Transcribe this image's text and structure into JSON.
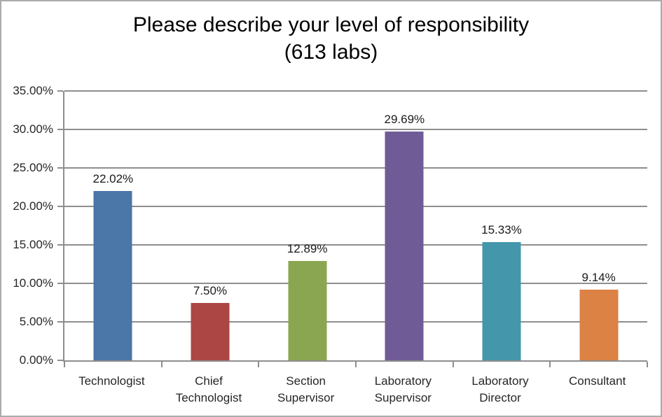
{
  "figure": {
    "title_line1": "Please describe your level of responsibility",
    "title_line2": "(613 labs)"
  },
  "chart_data": {
    "type": "bar",
    "title": "Please describe your level of responsibility (613 labs)",
    "categories": [
      "Technologist",
      "Chief Technologist",
      "Section Supervisor",
      "Laboratory Supervisor",
      "Laboratory Director",
      "Consultant"
    ],
    "values": [
      22.02,
      7.5,
      12.89,
      29.69,
      15.33,
      9.14
    ],
    "value_labels": [
      "22.02%",
      "7.50%",
      "12.89%",
      "29.69%",
      "15.33%",
      "9.14%"
    ],
    "bar_colors": [
      "#4A76A8",
      "#AC4645",
      "#8BA650",
      "#6F5B96",
      "#4497AB",
      "#DB8244"
    ],
    "xlabel": "",
    "ylabel": "",
    "ylim": [
      0,
      35
    ],
    "ytick_step": 5,
    "ytick_labels": [
      "0.00%",
      "5.00%",
      "10.00%",
      "15.00%",
      "20.00%",
      "25.00%",
      "30.00%",
      "35.00%"
    ],
    "grid": true,
    "legend": "none",
    "grid_color": "#8E8E8E",
    "axis_color": "#8E8E8E",
    "figure_border_color": "#ABABAB",
    "text_color": "#262626"
  }
}
